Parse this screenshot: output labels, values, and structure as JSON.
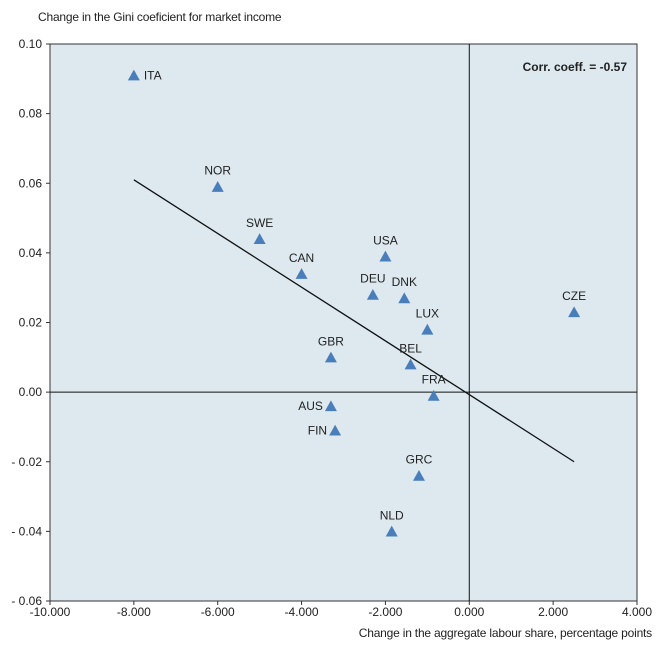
{
  "chart_data": {
    "type": "scatter",
    "ylabel": "Change in the Gini coeficient  for market income",
    "xlabel": "Change in the aggregate  labour share, percentage  points",
    "xlim": [
      -10,
      4
    ],
    "ylim": [
      -0.06,
      0.1
    ],
    "x_ticks": [
      -10,
      -8,
      -6,
      -4,
      -2,
      0,
      2,
      4
    ],
    "x_tick_labels": [
      "-10.000",
      "-8.000",
      "-6.000",
      "-4.000",
      "-2.000",
      "0.000",
      "2.000",
      "4.000"
    ],
    "y_ticks": [
      0.1,
      0.08,
      0.06,
      0.04,
      0.02,
      0.0,
      -0.02,
      -0.04,
      -0.06
    ],
    "y_tick_labels": [
      "0.10",
      "0.08",
      "0.06",
      "0.04",
      "0.02",
      "0.00",
      "- 0.02",
      "- 0.04",
      "- 0.06"
    ],
    "annotation": "Corr. coeff. = -0.57",
    "marker_color": "#4a7ebb",
    "points": [
      {
        "label": "ITA",
        "x": -8.0,
        "y": 0.091
      },
      {
        "label": "NOR",
        "x": -6.0,
        "y": 0.059
      },
      {
        "label": "SWE",
        "x": -5.0,
        "y": 0.044
      },
      {
        "label": "CAN",
        "x": -4.0,
        "y": 0.034
      },
      {
        "label": "USA",
        "x": -2.0,
        "y": 0.039
      },
      {
        "label": "DEU",
        "x": -2.3,
        "y": 0.028
      },
      {
        "label": "DNK",
        "x": -1.55,
        "y": 0.027
      },
      {
        "label": "LUX",
        "x": -1.0,
        "y": 0.018
      },
      {
        "label": "GBR",
        "x": -3.3,
        "y": 0.01
      },
      {
        "label": "BEL",
        "x": -1.4,
        "y": 0.008
      },
      {
        "label": "FRA",
        "x": -0.85,
        "y": -0.001
      },
      {
        "label": "AUS",
        "x": -3.3,
        "y": -0.004
      },
      {
        "label": "FIN",
        "x": -3.2,
        "y": -0.011
      },
      {
        "label": "GRC",
        "x": -1.2,
        "y": -0.024
      },
      {
        "label": "NLD",
        "x": -1.85,
        "y": -0.04
      },
      {
        "label": "CZE",
        "x": 2.5,
        "y": 0.023
      }
    ],
    "trendline": [
      [
        -8.0,
        0.061
      ],
      [
        2.5,
        -0.02
      ]
    ]
  }
}
